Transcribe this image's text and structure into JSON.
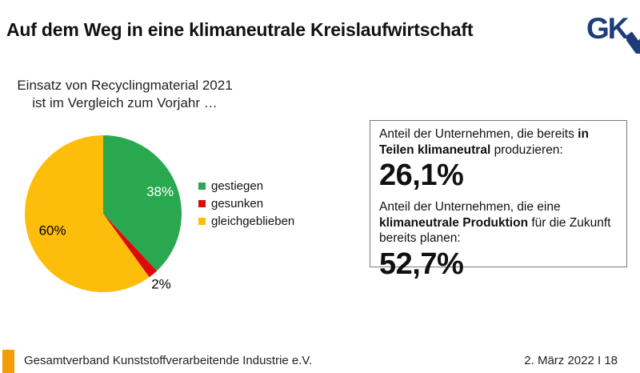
{
  "slide": {
    "title": "Auf dem Weg in eine klimaneutrale Kreislaufwirtschaft",
    "logo_text": "GK",
    "footer_org": "Gesamtverband Kunststoffverarbeitende Industrie e.V.",
    "footer_date_page": "2. März 2022 I 18"
  },
  "chart_intro": {
    "line1": "Einsatz von Recyclingmaterial 2021",
    "line2": "ist im Vergleich zum Vorjahr …"
  },
  "chart_data": {
    "type": "pie",
    "title": "Einsatz von Recyclingmaterial 2021 ist im Vergleich zum Vorjahr …",
    "labels": [
      "gestiegen",
      "gesunken",
      "gleichgeblieben"
    ],
    "values": [
      38,
      2,
      60
    ],
    "data_labels": [
      "38%",
      "2%",
      "60%"
    ],
    "colors": [
      "#2AA84F",
      "#DD0A0A",
      "#FCBE0A"
    ],
    "label_colors": [
      "#FFFFFF",
      "#000000",
      "#000000"
    ],
    "label_radius": [
      0.78,
      1.16,
      0.68
    ],
    "start_angle": "top",
    "direction": "clockwise",
    "legend_position": "right"
  },
  "stats_box": {
    "item1": {
      "parts": [
        "Anteil der Unternehmen, die bereits ",
        "in Teilen klimaneutral",
        " produzieren:"
      ],
      "value": "26,1%"
    },
    "item2": {
      "parts": [
        "Anteil der Unternehmen, die eine ",
        "klimaneutrale Produktion",
        " für die Zukunft bereits planen:"
      ],
      "value": "52,7%"
    }
  },
  "colors": {
    "accent_orange": "#F59B0A",
    "logo_navy": "#1E3C78",
    "box_border_gray": "#7a7a7a"
  }
}
